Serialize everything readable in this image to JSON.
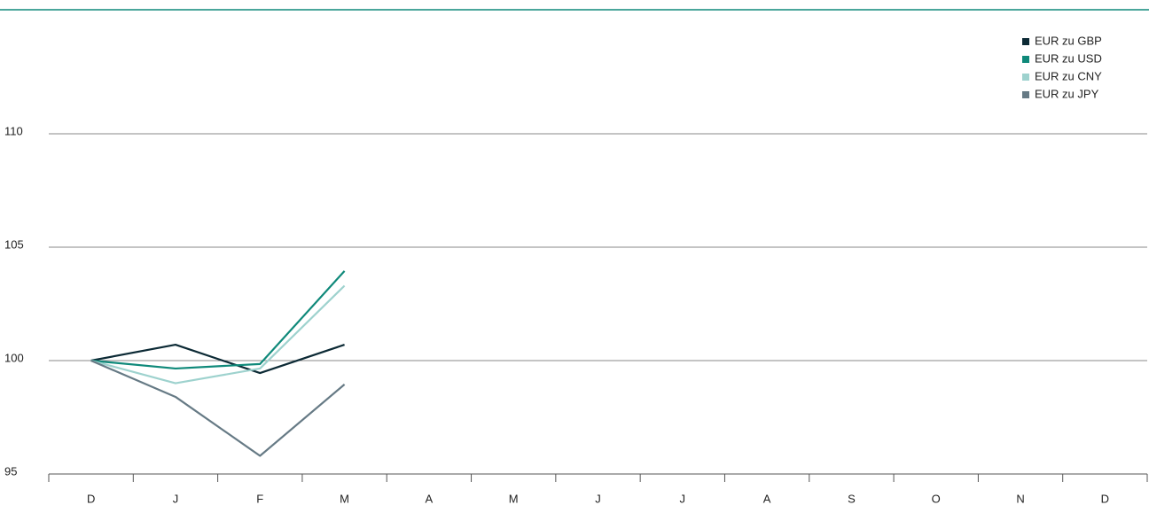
{
  "chart_data": {
    "type": "line",
    "categories": [
      "D",
      "J",
      "F",
      "M",
      "A",
      "M",
      "J",
      "J",
      "A",
      "S",
      "O",
      "N",
      "D"
    ],
    "series": [
      {
        "name": "EUR zu GBP",
        "color": "#0c2a35",
        "values": [
          100,
          100.7,
          99.45,
          100.7,
          null,
          null,
          null,
          null,
          null,
          null,
          null,
          null,
          null
        ]
      },
      {
        "name": "EUR zu USD",
        "color": "#0f897a",
        "values": [
          100,
          99.65,
          99.85,
          103.95,
          null,
          null,
          null,
          null,
          null,
          null,
          null,
          null,
          null
        ]
      },
      {
        "name": "EUR zu CNY",
        "color": "#9ed2ce",
        "values": [
          100,
          99.0,
          99.65,
          103.3,
          null,
          null,
          null,
          null,
          null,
          null,
          null,
          null,
          null
        ]
      },
      {
        "name": "EUR zu JPY",
        "color": "#667a85",
        "values": [
          100,
          98.4,
          95.8,
          98.95,
          null,
          null,
          null,
          null,
          null,
          null,
          null,
          null,
          null
        ]
      }
    ],
    "ylim": [
      95,
      115
    ],
    "yticks": [
      95,
      100,
      105,
      110
    ],
    "grid": true,
    "legend": "top-right"
  }
}
